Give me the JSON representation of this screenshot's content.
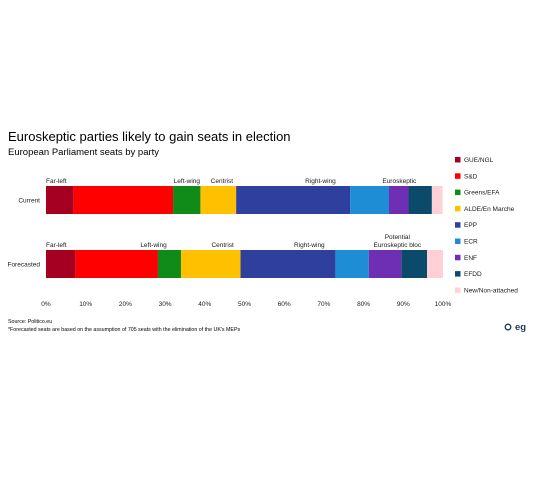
{
  "chart_data": {
    "type": "bar",
    "orientation": "horizontal",
    "stacked": true,
    "title": "Euroskeptic parties likely to gain seats in election",
    "subtitle": "European Parliament seats by party",
    "categories": [
      "Current",
      "Forecasted"
    ],
    "series": [
      {
        "name": "GUE/NGL",
        "color": "#A50021",
        "values": [
          6.9,
          7.4
        ]
      },
      {
        "name": "S&D",
        "color": "#FF0000",
        "values": [
          25.1,
          20.8
        ]
      },
      {
        "name": "Greens/EFA",
        "color": "#108A19",
        "values": [
          6.9,
          5.8
        ]
      },
      {
        "name": "ALDE/En Marche",
        "color": "#FFC000",
        "values": [
          9.0,
          15.0
        ]
      },
      {
        "name": "EPP",
        "color": "#2E3F9E",
        "values": [
          28.7,
          23.9
        ]
      },
      {
        "name": "ECR",
        "color": "#1F8DD6",
        "values": [
          9.8,
          8.4
        ]
      },
      {
        "name": "ENF",
        "color": "#6F2FB5",
        "values": [
          4.9,
          8.2
        ]
      },
      {
        "name": "EFDD",
        "color": "#0C4A6B",
        "values": [
          5.9,
          6.5
        ]
      },
      {
        "name": "New/Non-attached",
        "color": "#FFD0D6",
        "values": [
          2.7,
          4.0
        ]
      }
    ],
    "segment_labels": [
      [
        {
          "text": "Far-left",
          "at": 0
        },
        {
          "text": "Left-wing",
          "at": 38.8,
          "anchor": "end"
        },
        {
          "text": "Centrist",
          "at": 44.3,
          "anchor": "middle"
        },
        {
          "text": "Right-wing",
          "at": 73.0,
          "anchor": "end"
        },
        {
          "text": "Euroskeptic",
          "at": 89.0,
          "anchor": "middle"
        }
      ],
      [
        {
          "text": "Far-left",
          "at": 0
        },
        {
          "text": "Left-wing",
          "at": 30.4,
          "anchor": "end"
        },
        {
          "text": "Centrist",
          "at": 44.5,
          "anchor": "middle"
        },
        {
          "text": "Right-wing",
          "at": 70.2,
          "anchor": "end"
        },
        {
          "text": "Potential",
          "at": 88.5,
          "anchor": "middle",
          "line": 1
        },
        {
          "text": "Euroskeptic bloc",
          "at": 88.5,
          "anchor": "middle",
          "line": 2
        }
      ]
    ],
    "xlim": [
      0,
      100
    ],
    "x_ticks": [
      "0%",
      "10%",
      "20%",
      "30%",
      "40%",
      "50%",
      "60%",
      "70%",
      "80%",
      "90%",
      "100%"
    ],
    "grid": false,
    "legend_position": "right"
  },
  "source": "Source: Politico.eu",
  "footnote": "*Forecasted seats are based on the assumption of 705 seats with the elimination of the UK's MEPs",
  "logo_text": "eg"
}
